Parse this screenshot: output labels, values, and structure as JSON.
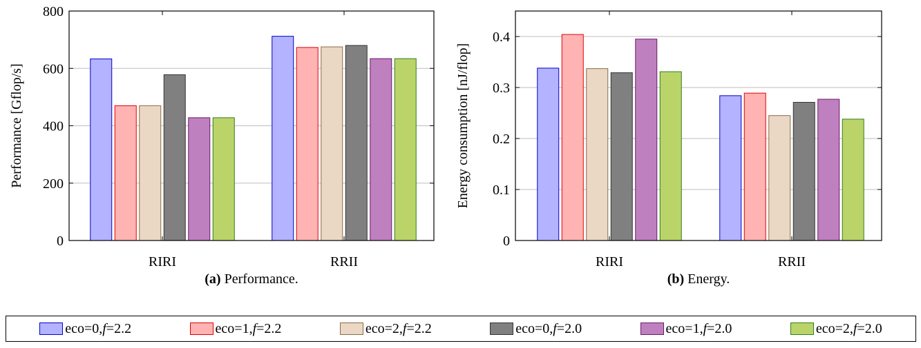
{
  "legend": [
    {
      "eco": "eco=0, ",
      "f_sym": "f",
      "f_val": " =2.2",
      "fill": "#b3b3ff",
      "stroke": "#0000cc"
    },
    {
      "eco": "eco=1, ",
      "f_sym": "f",
      "f_val": " =2.2",
      "fill": "#ffb3b3",
      "stroke": "#e00000"
    },
    {
      "eco": "eco=2, ",
      "f_sym": "f",
      "f_val": " =2.2",
      "fill": "#ead8c5",
      "stroke": "#8a6a45"
    },
    {
      "eco": "eco=0, ",
      "f_sym": "f",
      "f_val": " =2.0",
      "fill": "#808080",
      "stroke": "#333333"
    },
    {
      "eco": "eco=1, ",
      "f_sym": "f",
      "f_val": " =2.0",
      "fill": "#bf80bf",
      "stroke": "#6a1a6a"
    },
    {
      "eco": "eco=2, ",
      "f_sym": "f",
      "f_val": " =2.0",
      "fill": "#bbd46a",
      "stroke": "#2e7d1e"
    }
  ],
  "chart_data": [
    {
      "type": "bar",
      "categories": [
        "RIRI",
        "RRII"
      ],
      "series": [
        {
          "name": "eco=0, f=2.2",
          "values": [
            633,
            712
          ]
        },
        {
          "name": "eco=1, f=2.2",
          "values": [
            470,
            673
          ]
        },
        {
          "name": "eco=2, f=2.2",
          "values": [
            470,
            675
          ]
        },
        {
          "name": "eco=0, f=2.0",
          "values": [
            578,
            680
          ]
        },
        {
          "name": "eco=1, f=2.0",
          "values": [
            428,
            634
          ]
        },
        {
          "name": "eco=2, f=2.0",
          "values": [
            428,
            634
          ]
        }
      ],
      "ylabel": "Performance [Gflop/s]",
      "ylim": [
        0,
        800
      ],
      "yticks": [
        0,
        200,
        400,
        600,
        800
      ],
      "ytick_labels": [
        "0",
        "200",
        "400",
        "600",
        "800"
      ],
      "grid": "y",
      "caption_tag": "(a)",
      "caption_text": " Performance."
    },
    {
      "type": "bar",
      "categories": [
        "RIRI",
        "RRII"
      ],
      "series": [
        {
          "name": "eco=0, f=2.2",
          "values": [
            0.338,
            0.284
          ]
        },
        {
          "name": "eco=1, f=2.2",
          "values": [
            0.404,
            0.289
          ]
        },
        {
          "name": "eco=2, f=2.2",
          "values": [
            0.337,
            0.245
          ]
        },
        {
          "name": "eco=0, f=2.0",
          "values": [
            0.329,
            0.271
          ]
        },
        {
          "name": "eco=1, f=2.0",
          "values": [
            0.395,
            0.277
          ]
        },
        {
          "name": "eco=2, f=2.0",
          "values": [
            0.331,
            0.238
          ]
        }
      ],
      "ylabel": "Energy consumption [nJ/flop]",
      "ylim": [
        0,
        0.45
      ],
      "yticks": [
        0,
        0.1,
        0.2,
        0.3,
        0.4
      ],
      "ytick_labels": [
        "0",
        "0.1",
        "0.2",
        "0.3",
        "0.4"
      ],
      "grid": "y",
      "caption_tag": "(b)",
      "caption_text": " Energy."
    }
  ]
}
